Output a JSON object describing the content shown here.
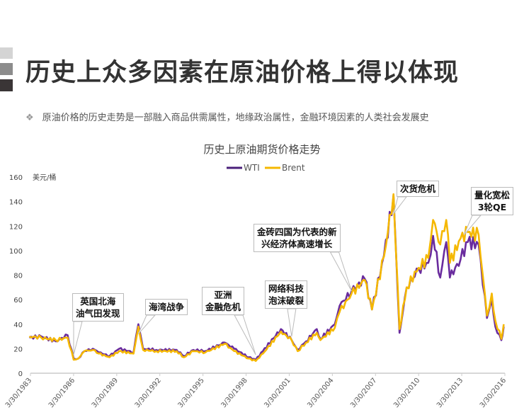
{
  "slide": {
    "headline": "历史上众多因素在原油价格上得以体现",
    "bullet_icon": "diamond-bullet-icon",
    "bullet": "原油价格的历史走势是一部融入商品供需属性，地缘政治属性，金融环境因素的人类社会发展史"
  },
  "chart_data": {
    "type": "line",
    "title": "历史上原油期货价格走势",
    "ylabel": "美元/桶",
    "ylim": [
      0,
      160
    ],
    "yticks": [
      0,
      20,
      40,
      60,
      80,
      100,
      120,
      140,
      160
    ],
    "xlim": [
      "1983-03-30",
      "2016-03-30"
    ],
    "xticks": [
      "3/30/1983",
      "3/30/1986",
      "3/30/1989",
      "3/30/1992",
      "3/30/1995",
      "3/30/1998",
      "3/30/2001",
      "3/30/2004",
      "3/30/2007",
      "3/30/2010",
      "3/30/2013",
      "3/30/2016"
    ],
    "grid": false,
    "legend": "top-center",
    "colors": {
      "WTI": "#6a2c9e",
      "Brent": "#f5b800"
    },
    "x": [
      "1983-03",
      "1984-01",
      "1985-01",
      "1985-11",
      "1986-04",
      "1986-08",
      "1987-01",
      "1987-08",
      "1988-01",
      "1988-10",
      "1989-06",
      "1990-06",
      "1990-10",
      "1991-02",
      "1992-01",
      "1993-06",
      "1993-12",
      "1994-08",
      "1995-06",
      "1996-10",
      "1997-06",
      "1998-06",
      "1998-12",
      "1999-06",
      "2000-09",
      "2001-06",
      "2001-11",
      "2002-06",
      "2003-03",
      "2003-06",
      "2004-06",
      "2004-10",
      "2005-08",
      "2006-07",
      "2007-01",
      "2007-11",
      "2008-07",
      "2008-12",
      "2009-06",
      "2010-04",
      "2010-12",
      "2011-04",
      "2011-10",
      "2012-03",
      "2012-06",
      "2013-03",
      "2013-09",
      "2014-06",
      "2015-01",
      "2015-05",
      "2015-08",
      "2016-01",
      "2016-03"
    ],
    "series": [
      {
        "name": "WTI",
        "values": [
          29,
          30,
          26,
          31,
          12,
          12,
          18,
          20,
          17,
          14,
          20,
          17,
          40,
          20,
          19,
          19,
          14,
          19,
          18,
          25,
          20,
          13,
          11,
          18,
          36,
          27,
          19,
          26,
          36,
          28,
          40,
          55,
          67,
          77,
          52,
          96,
          145,
          33,
          70,
          85,
          90,
          112,
          78,
          107,
          78,
          93,
          107,
          105,
          45,
          60,
          38,
          27,
          38
        ]
      },
      {
        "name": "Brent",
        "values": [
          30,
          29,
          27,
          29,
          11,
          12,
          18,
          19,
          16,
          13,
          18,
          16,
          38,
          19,
          18,
          18,
          13,
          18,
          17,
          24,
          18,
          12,
          10,
          16,
          34,
          27,
          18,
          25,
          33,
          27,
          37,
          50,
          65,
          76,
          52,
          95,
          146,
          36,
          70,
          86,
          94,
          125,
          105,
          125,
          90,
          110,
          115,
          113,
          47,
          65,
          43,
          28,
          40
        ]
      }
    ],
    "annotations": [
      {
        "lines": [
          "英国北海",
          "油气田发现"
        ],
        "date": "1986-04",
        "value": 15
      },
      {
        "lines": [
          "海湾战争"
        ],
        "date": "1990-10",
        "value": 32
      },
      {
        "lines": [
          "亚洲",
          "金融危机"
        ],
        "date": "1998-12",
        "value": 15
      },
      {
        "lines": [
          "网络科技",
          "泡沫破裂"
        ],
        "date": "2001-06",
        "value": 30
      },
      {
        "lines": [
          "金砖四国为代表的新",
          "兴经济体高速增长"
        ],
        "date": "2005-08",
        "value": 67
      },
      {
        "lines": [
          "次货危机"
        ],
        "date": "2008-07",
        "value": 130
      },
      {
        "lines": [
          "量化宽松",
          "3轮QE"
        ],
        "date": "2013-06",
        "value": 113
      }
    ]
  }
}
